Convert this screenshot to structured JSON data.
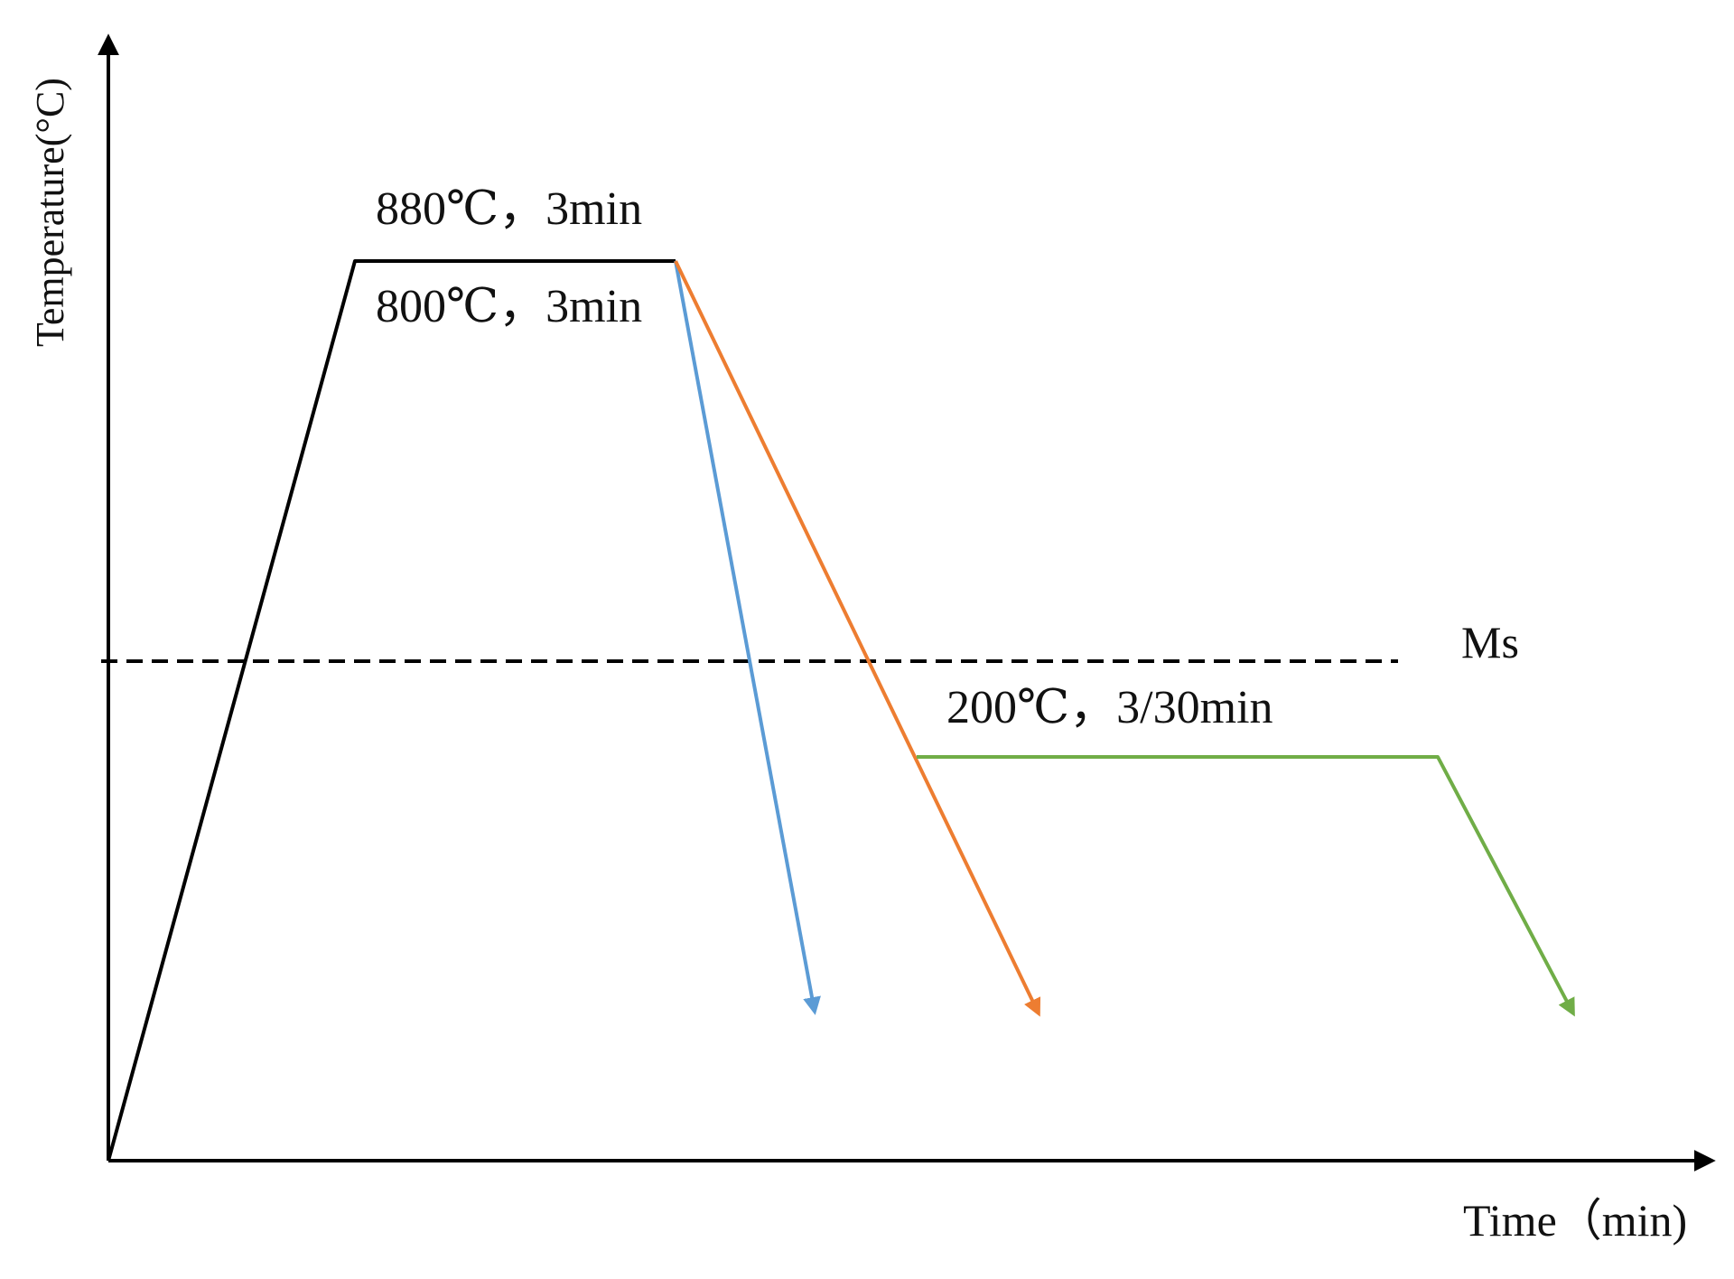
{
  "axes": {
    "y_label": "Temperature(°C)",
    "x_label": "Time（min)"
  },
  "annotations": {
    "hold_upper": "880℃，3min",
    "hold_lower": "800℃，3min",
    "ms_label": "Ms",
    "isothermal": "200℃，3/30min"
  },
  "colors": {
    "heating": "#000000",
    "quench_direct": "#5b9bd5",
    "quench_slow": "#ed7d31",
    "isothermal_route": "#70ad47",
    "ms_line": "#000000"
  }
}
